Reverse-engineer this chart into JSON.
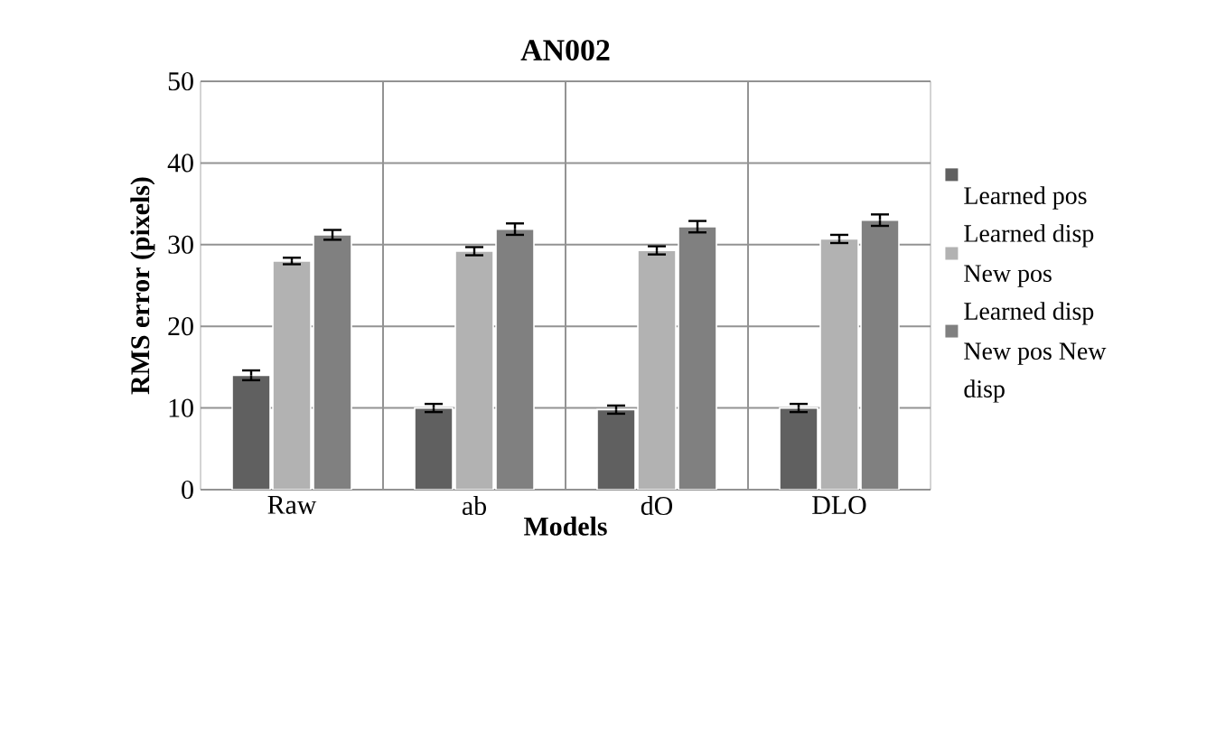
{
  "chart_data": {
    "type": "bar",
    "title": "AN002",
    "xlabel": "Models",
    "ylabel": "RMS error (pixels)",
    "categories": [
      "Raw",
      "ab",
      "dO",
      "DLO"
    ],
    "series": [
      {
        "name": "Learned pos Learned disp",
        "color": "#606060",
        "values": [
          14,
          10,
          9.8,
          10
        ],
        "errors": [
          0.6,
          0.5,
          0.5,
          0.5
        ]
      },
      {
        "name": "New pos Learned disp",
        "color": "#b2b2b2",
        "values": [
          28,
          29.2,
          29.3,
          30.7
        ],
        "errors": [
          0.4,
          0.5,
          0.5,
          0.5
        ]
      },
      {
        "name": "New pos New disp",
        "color": "#808080",
        "values": [
          31.2,
          31.9,
          32.2,
          33
        ],
        "errors": [
          0.6,
          0.7,
          0.7,
          0.7
        ]
      }
    ],
    "ylim": [
      0,
      50
    ],
    "yticks": [
      0,
      10,
      20,
      30,
      40,
      50
    ],
    "grid": true,
    "legend": "right"
  }
}
